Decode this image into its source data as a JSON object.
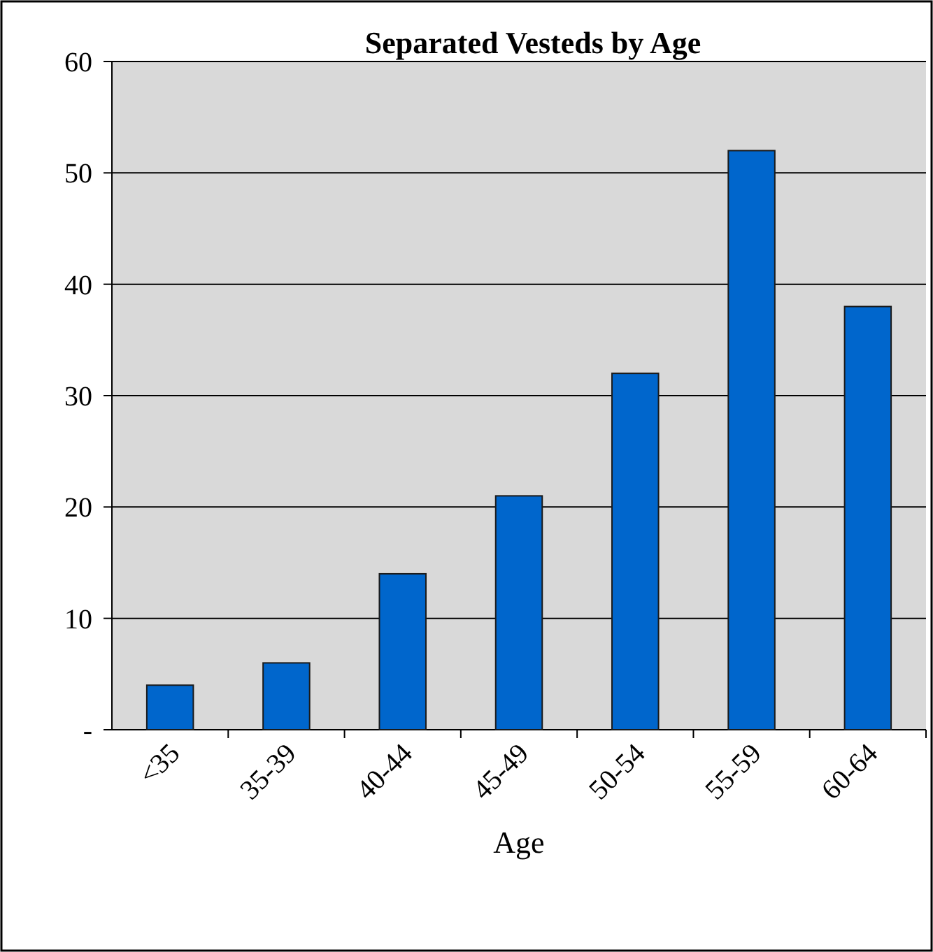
{
  "chart_data": {
    "type": "bar",
    "title": "Separated Vesteds by Age",
    "xlabel": "Age",
    "categories": [
      "<35",
      "35-39",
      "40-44",
      "45-49",
      "50-54",
      "55-59",
      "60-64"
    ],
    "values": [
      4,
      6,
      14,
      21,
      32,
      52,
      38
    ],
    "color": "#0066cc",
    "ylim": [
      0,
      60
    ],
    "yticks": [
      {
        "value": 0,
        "label": "-"
      },
      10,
      20,
      30,
      40,
      50,
      60
    ],
    "grid": "y"
  }
}
